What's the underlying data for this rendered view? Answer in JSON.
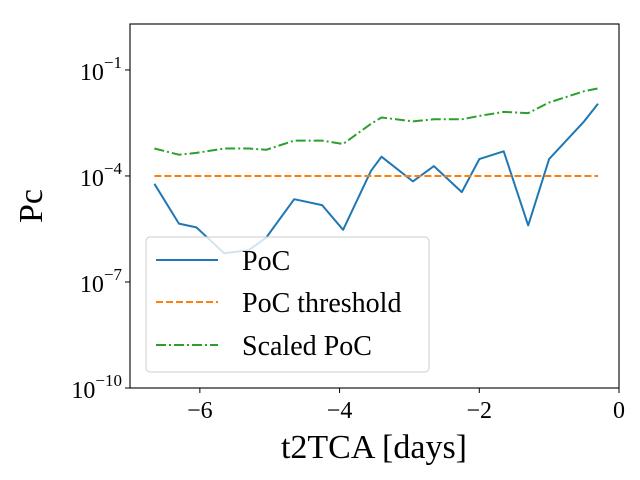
{
  "chart_data": {
    "type": "line",
    "xlabel": "t2TCA [days]",
    "ylabel": "Pc",
    "xlim": [
      -7.0,
      0.0
    ],
    "ylim_log10": [
      -10,
      0.3
    ],
    "yscale": "log",
    "grid": false,
    "legend_position": "lower-left",
    "x_ticks": [
      {
        "value": -6,
        "label": "−6"
      },
      {
        "value": -4,
        "label": "−4"
      },
      {
        "value": -2,
        "label": "−2"
      },
      {
        "value": 0,
        "label": "0"
      }
    ],
    "y_ticks": [
      {
        "exp": -1,
        "base": "10",
        "sup": "−1"
      },
      {
        "exp": -4,
        "base": "10",
        "sup": "−4"
      },
      {
        "exp": -7,
        "base": "10",
        "sup": "−7"
      },
      {
        "exp": -10,
        "base": "10",
        "sup": "−10"
      }
    ],
    "series": [
      {
        "name": "PoC",
        "color": "#1f77b4",
        "style": "solid",
        "x": [
          -6.65,
          -6.3,
          -6.05,
          -5.65,
          -5.3,
          -5.05,
          -4.65,
          -4.25,
          -3.95,
          -3.55,
          -3.4,
          -2.95,
          -2.65,
          -2.25,
          -2.0,
          -1.65,
          -1.3,
          -1.0,
          -0.5,
          -0.3
        ],
        "y": [
          6e-05,
          4.5e-06,
          3.5e-06,
          6.5e-07,
          8e-07,
          1.8e-06,
          2.2e-05,
          1.5e-05,
          3e-06,
          0.00014,
          0.00035,
          7e-05,
          0.00019,
          3.5e-05,
          0.0003,
          0.0005,
          4e-06,
          0.0003,
          0.0035,
          0.011
        ]
      },
      {
        "name": "PoC threshold",
        "color": "#ff7f0e",
        "style": "dashed",
        "x": [
          -6.65,
          -0.3
        ],
        "y": [
          0.0001,
          0.0001
        ]
      },
      {
        "name": "Scaled PoC",
        "color": "#2ca02c",
        "style": "dashdot",
        "x": [
          -6.65,
          -6.3,
          -6.05,
          -5.65,
          -5.3,
          -5.05,
          -4.65,
          -4.25,
          -3.95,
          -3.55,
          -3.4,
          -2.95,
          -2.65,
          -2.25,
          -2.0,
          -1.65,
          -1.3,
          -1.0,
          -0.5,
          -0.3
        ],
        "y": [
          0.0006,
          0.0004,
          0.00045,
          0.0006,
          0.0006,
          0.00055,
          0.001,
          0.001,
          0.0008,
          0.003,
          0.0045,
          0.0035,
          0.004,
          0.004,
          0.005,
          0.0065,
          0.006,
          0.012,
          0.025,
          0.03
        ]
      }
    ]
  }
}
